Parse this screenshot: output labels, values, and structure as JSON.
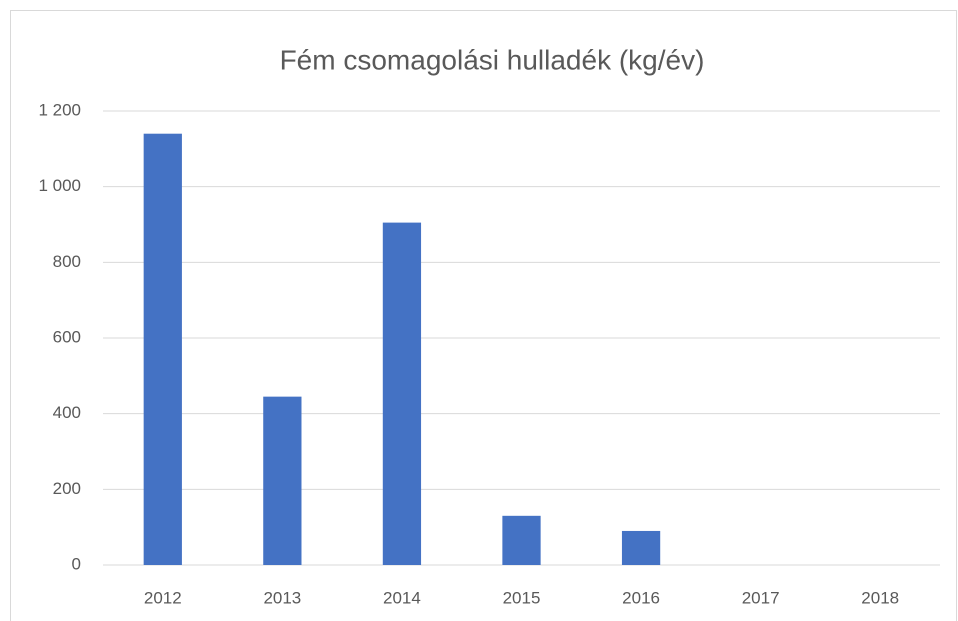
{
  "chart_data": {
    "type": "bar",
    "title": "Fém csomagolási hulladék (kg/év)",
    "categories": [
      "2012",
      "2013",
      "2014",
      "2015",
      "2016",
      "2017",
      "2018"
    ],
    "values": [
      1140,
      445,
      905,
      130,
      90,
      0,
      0
    ],
    "color": "#4472c4",
    "ylim": [
      0,
      1200
    ],
    "yticks": [
      0,
      200,
      400,
      600,
      800,
      {
        "value": 1000,
        "label": "1 000"
      },
      {
        "value": 1200,
        "label": "1 200"
      }
    ],
    "grid": true
  }
}
